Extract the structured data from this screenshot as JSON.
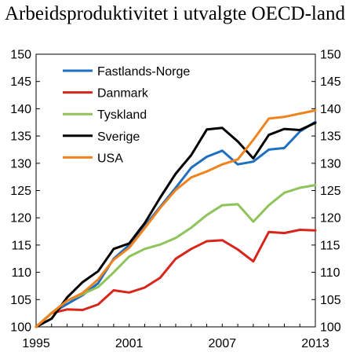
{
  "chart_data": {
    "type": "line",
    "title": "Arbeidsproduktivitet i utvalgte OECD-land",
    "xlabel": "",
    "ylabel": "",
    "xlim": [
      1995,
      2013
    ],
    "ylim": [
      100,
      150
    ],
    "x_ticks": [
      1995,
      2001,
      2007,
      2013
    ],
    "y_ticks": [
      100,
      105,
      110,
      115,
      120,
      125,
      130,
      135,
      140,
      145,
      150
    ],
    "right_axis": true,
    "grid": false,
    "legend_position": "top-left",
    "x": [
      1995,
      1996,
      1997,
      1998,
      1999,
      2000,
      2001,
      2002,
      2003,
      2004,
      2005,
      2006,
      2007,
      2008,
      2009,
      2010,
      2011,
      2012,
      2013
    ],
    "series": [
      {
        "name": "Fastlands-Norge",
        "color": "#1f6fc0",
        "values": [
          100,
          102.5,
          104.2,
          105.8,
          108.0,
          112.5,
          115.0,
          118.5,
          122.0,
          125.5,
          129.2,
          131.2,
          132.3,
          129.8,
          130.3,
          132.5,
          132.8,
          135.8,
          137.6
        ]
      },
      {
        "name": "Danmark",
        "color": "#d9261c",
        "values": [
          100,
          102.5,
          103.2,
          103.1,
          104.1,
          106.7,
          106.3,
          107.2,
          109.0,
          112.5,
          114.3,
          115.7,
          115.9,
          114.2,
          112.0,
          117.4,
          117.2,
          117.8,
          117.7
        ]
      },
      {
        "name": "Tyskland",
        "color": "#8ec45a",
        "values": [
          100,
          102.6,
          104.8,
          106.0,
          107.3,
          110.0,
          112.9,
          114.3,
          115.1,
          116.3,
          118.2,
          120.5,
          122.3,
          122.5,
          119.3,
          122.3,
          124.6,
          125.5,
          126.0
        ]
      },
      {
        "name": "Sverige",
        "color": "#000000",
        "values": [
          100,
          101.5,
          105.4,
          108.2,
          110.2,
          114.3,
          115.3,
          119.0,
          123.7,
          128.1,
          131.5,
          136.2,
          136.5,
          134.0,
          130.9,
          135.2,
          136.3,
          136.1,
          137.4
        ]
      },
      {
        "name": "USA",
        "color": "#f0831e",
        "values": [
          100,
          102.5,
          104.8,
          106.2,
          108.7,
          112.3,
          114.5,
          118.1,
          121.8,
          125.1,
          127.4,
          128.5,
          129.8,
          130.7,
          134.3,
          138.2,
          138.5,
          139.1,
          139.7
        ]
      }
    ]
  }
}
